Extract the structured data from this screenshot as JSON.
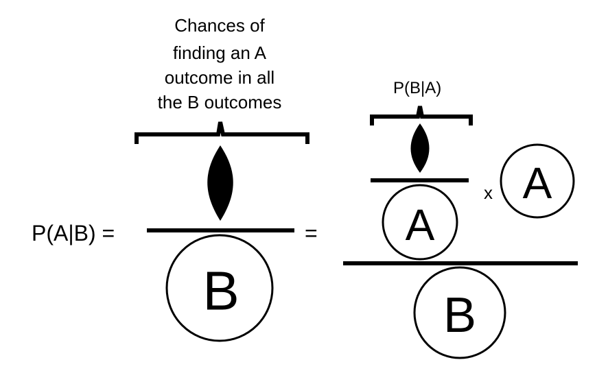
{
  "caption": {
    "lines": [
      "Chances of",
      "finding an A",
      "outcome in all",
      "the B outcomes"
    ]
  },
  "lhs_label": "P(A|B) =",
  "middle_equals": "=",
  "pba_label": "P(B|A)",
  "times_sign": "x",
  "circle_letters": {
    "left_b": "B",
    "right_a_top": "A",
    "right_a_side": "A",
    "right_b": "B"
  }
}
